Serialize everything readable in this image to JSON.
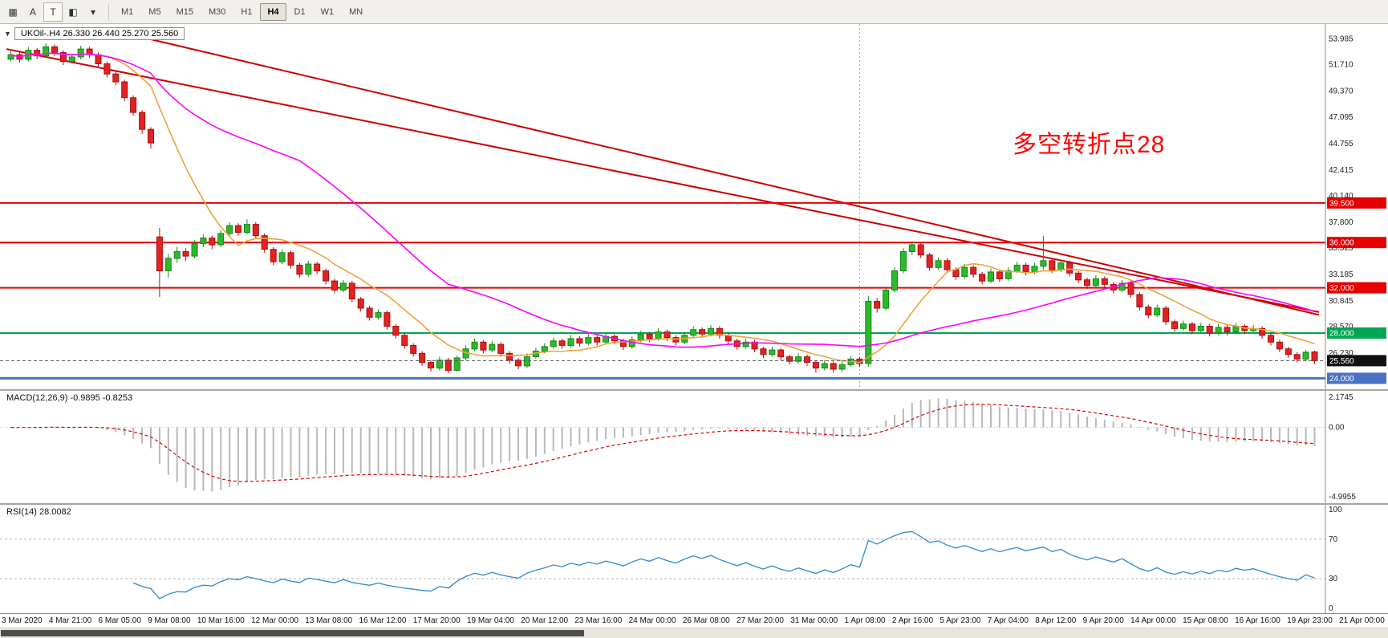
{
  "toolbar": {
    "tools": [
      {
        "name": "chart-grid-icon",
        "glyph": "▦",
        "boxed": false
      },
      {
        "name": "cursor-a-tool",
        "glyph": "A",
        "boxed": false
      },
      {
        "name": "text-tool",
        "glyph": "T",
        "boxed": true
      },
      {
        "name": "palette-icon",
        "glyph": "◧",
        "boxed": false
      },
      {
        "name": "palette-caret-icon",
        "glyph": "▾",
        "boxed": false
      }
    ],
    "timeframes": [
      "M1",
      "M5",
      "M15",
      "M30",
      "H1",
      "H4",
      "D1",
      "W1",
      "MN"
    ],
    "active_timeframe": "H4"
  },
  "main": {
    "symbol_info": "UKOil-.H4 26.330 26.440 25.270 25.560",
    "annotation": "多空转折点28"
  },
  "colors": {
    "up": "#2eb82e",
    "up_edge": "#128a12",
    "down": "#e32222",
    "down_edge": "#a80f0f",
    "trend": "#cc0000",
    "hist": "#b8b8b8",
    "macd_signal": "#e00000",
    "rsi_line": "#2f89cc",
    "ma_fast": "#eda33c",
    "ma_slow": "#ff00ff"
  },
  "chart_data": {
    "type": "candlestick",
    "symbol": "UKOil-",
    "timeframe": "H4",
    "ohlc_display": {
      "open": "26.330",
      "high": "26.440",
      "low": "25.270",
      "close": "25.560"
    },
    "price_range": {
      "min": 23.6,
      "max": 54.6
    },
    "price_ticks": [
      53.985,
      51.71,
      49.37,
      47.095,
      44.755,
      42.415,
      40.14,
      37.8,
      35.525,
      33.185,
      30.845,
      28.57,
      26.23
    ],
    "h_lines": [
      {
        "price": 39.5,
        "label": "39.500",
        "color": "#e60000",
        "width": 2
      },
      {
        "price": 36.0,
        "label": "36.000",
        "color": "#e60000",
        "width": 2
      },
      {
        "price": 32.0,
        "label": "32.000",
        "color": "#e60000",
        "width": 2
      },
      {
        "price": 28.0,
        "label": "28.000",
        "color": "#00a650",
        "width": 2
      },
      {
        "price": 24.0,
        "label": "24.000",
        "color": "#4a72c4",
        "width": 3
      }
    ],
    "current_price": {
      "value": 25.56,
      "label": "25.560"
    },
    "trend_lines": [
      {
        "i1": 13,
        "p1": 54.6,
        "i2": 150,
        "p2": 29.6
      },
      {
        "i1": 0,
        "p1": 53.1,
        "i2": 150,
        "p2": 29.85
      }
    ],
    "separator_index": 97,
    "moving_averages": [
      {
        "period": 10,
        "color": "#eda33c"
      },
      {
        "period": 34,
        "color": "#ff00ff"
      }
    ],
    "candles": [
      [
        52.2,
        52.9,
        52.0,
        52.6
      ],
      [
        52.6,
        52.9,
        51.9,
        52.2
      ],
      [
        52.2,
        53.3,
        52.0,
        53.0
      ],
      [
        53.0,
        53.2,
        52.2,
        52.5
      ],
      [
        52.5,
        53.6,
        52.3,
        53.3
      ],
      [
        53.3,
        53.5,
        52.5,
        52.8
      ],
      [
        52.8,
        53.0,
        51.7,
        52.0
      ],
      [
        52.0,
        52.7,
        51.8,
        52.4
      ],
      [
        52.4,
        53.4,
        52.2,
        53.1
      ],
      [
        53.1,
        53.3,
        52.3,
        52.6
      ],
      [
        52.6,
        52.8,
        51.5,
        51.8
      ],
      [
        51.8,
        52.0,
        50.6,
        50.9
      ],
      [
        50.9,
        51.2,
        49.9,
        50.2
      ],
      [
        50.2,
        50.4,
        48.5,
        48.8
      ],
      [
        48.8,
        49.0,
        47.2,
        47.5
      ],
      [
        47.5,
        47.7,
        45.6,
        46.0
      ],
      [
        46.0,
        46.2,
        44.3,
        44.8
      ],
      [
        36.5,
        37.3,
        31.2,
        33.5
      ],
      [
        33.5,
        35.0,
        32.9,
        34.6
      ],
      [
        34.6,
        35.6,
        34.2,
        35.2
      ],
      [
        35.2,
        35.5,
        34.4,
        34.8
      ],
      [
        34.8,
        36.2,
        34.6,
        35.9
      ],
      [
        35.9,
        36.7,
        35.6,
        36.4
      ],
      [
        36.4,
        36.6,
        35.4,
        35.8
      ],
      [
        35.8,
        37.1,
        35.6,
        36.8
      ],
      [
        36.8,
        37.8,
        36.5,
        37.5
      ],
      [
        37.5,
        37.7,
        36.6,
        36.9
      ],
      [
        36.9,
        38.05,
        36.7,
        37.6
      ],
      [
        37.6,
        37.8,
        36.3,
        36.6
      ],
      [
        36.6,
        36.8,
        35.1,
        35.4
      ],
      [
        35.4,
        35.6,
        34.0,
        34.3
      ],
      [
        34.3,
        35.4,
        34.1,
        35.1
      ],
      [
        35.1,
        35.3,
        33.7,
        34.0
      ],
      [
        34.0,
        34.2,
        32.9,
        33.2
      ],
      [
        33.2,
        34.4,
        33.0,
        34.1
      ],
      [
        34.1,
        34.3,
        33.2,
        33.5
      ],
      [
        33.5,
        33.7,
        32.3,
        32.6
      ],
      [
        32.6,
        32.8,
        31.5,
        31.8
      ],
      [
        31.8,
        32.7,
        31.6,
        32.4
      ],
      [
        32.4,
        32.6,
        30.7,
        31.0
      ],
      [
        31.0,
        31.2,
        29.9,
        30.2
      ],
      [
        30.2,
        30.4,
        29.1,
        29.4
      ],
      [
        29.4,
        30.1,
        29.2,
        29.8
      ],
      [
        29.8,
        30.0,
        28.3,
        28.6
      ],
      [
        28.6,
        28.8,
        27.5,
        27.8
      ],
      [
        27.8,
        28.0,
        26.6,
        26.9
      ],
      [
        26.9,
        27.1,
        25.9,
        26.2
      ],
      [
        26.2,
        26.4,
        25.1,
        25.4
      ],
      [
        25.4,
        25.6,
        24.6,
        24.9
      ],
      [
        24.9,
        25.9,
        24.7,
        25.6
      ],
      [
        25.6,
        25.8,
        24.45,
        24.7
      ],
      [
        24.7,
        26.0,
        24.6,
        25.8
      ],
      [
        25.8,
        26.9,
        25.6,
        26.6
      ],
      [
        26.6,
        27.5,
        26.4,
        27.2
      ],
      [
        27.2,
        27.4,
        26.2,
        26.5
      ],
      [
        26.5,
        27.3,
        26.3,
        27.0
      ],
      [
        27.0,
        27.2,
        25.9,
        26.2
      ],
      [
        26.2,
        26.4,
        25.3,
        25.6
      ],
      [
        25.6,
        25.8,
        24.8,
        25.1
      ],
      [
        25.1,
        26.2,
        24.9,
        25.9
      ],
      [
        25.9,
        26.7,
        25.7,
        26.4
      ],
      [
        26.4,
        27.1,
        26.2,
        26.8
      ],
      [
        26.8,
        27.6,
        26.6,
        27.3
      ],
      [
        27.3,
        27.5,
        26.6,
        26.9
      ],
      [
        26.9,
        27.8,
        26.7,
        27.5
      ],
      [
        27.5,
        27.7,
        26.8,
        27.1
      ],
      [
        27.1,
        27.9,
        26.9,
        27.6
      ],
      [
        27.6,
        27.8,
        26.9,
        27.2
      ],
      [
        27.2,
        28.0,
        27.0,
        27.7
      ],
      [
        27.7,
        27.9,
        27.0,
        27.3
      ],
      [
        27.3,
        27.5,
        26.5,
        26.8
      ],
      [
        26.8,
        27.7,
        26.6,
        27.4
      ],
      [
        27.4,
        28.2,
        27.2,
        27.9
      ],
      [
        27.9,
        28.1,
        27.2,
        27.5
      ],
      [
        27.5,
        28.4,
        27.3,
        28.1
      ],
      [
        28.1,
        28.3,
        27.3,
        27.6
      ],
      [
        27.6,
        27.8,
        26.9,
        27.2
      ],
      [
        27.2,
        28.1,
        27.0,
        27.8
      ],
      [
        27.8,
        28.6,
        27.6,
        28.3
      ],
      [
        28.3,
        28.5,
        27.6,
        27.9
      ],
      [
        27.9,
        28.7,
        27.7,
        28.4
      ],
      [
        28.4,
        28.6,
        27.5,
        27.8
      ],
      [
        27.8,
        28.0,
        27.0,
        27.3
      ],
      [
        27.3,
        27.5,
        26.5,
        26.8
      ],
      [
        26.8,
        27.5,
        26.6,
        27.2
      ],
      [
        27.2,
        27.4,
        26.3,
        26.6
      ],
      [
        26.6,
        26.8,
        25.8,
        26.1
      ],
      [
        26.1,
        26.8,
        25.9,
        26.5
      ],
      [
        26.5,
        26.7,
        25.6,
        25.9
      ],
      [
        25.9,
        26.1,
        25.2,
        25.5
      ],
      [
        25.5,
        26.2,
        25.3,
        25.9
      ],
      [
        25.9,
        26.1,
        25.1,
        25.4
      ],
      [
        25.4,
        25.6,
        24.5,
        24.9
      ],
      [
        24.9,
        25.6,
        24.7,
        25.3
      ],
      [
        25.3,
        25.5,
        24.5,
        24.8
      ],
      [
        24.8,
        25.5,
        24.6,
        25.2
      ],
      [
        25.2,
        26.0,
        25.0,
        25.7
      ],
      [
        25.7,
        25.9,
        25.0,
        25.3
      ],
      [
        25.3,
        31.3,
        25.0,
        30.8
      ],
      [
        30.8,
        31.1,
        29.8,
        30.2
      ],
      [
        30.2,
        32.1,
        30.0,
        31.8
      ],
      [
        31.8,
        33.8,
        31.6,
        33.5
      ],
      [
        33.5,
        35.5,
        33.3,
        35.2
      ],
      [
        35.2,
        36.1,
        34.9,
        35.8
      ],
      [
        35.8,
        36.0,
        34.6,
        34.9
      ],
      [
        34.9,
        35.1,
        33.5,
        33.8
      ],
      [
        33.8,
        34.7,
        33.6,
        34.4
      ],
      [
        34.4,
        34.6,
        33.3,
        33.6
      ],
      [
        33.6,
        33.8,
        32.7,
        33.0
      ],
      [
        33.0,
        34.1,
        32.8,
        33.8
      ],
      [
        33.8,
        34.0,
        32.9,
        33.2
      ],
      [
        33.2,
        33.4,
        32.3,
        32.6
      ],
      [
        32.6,
        33.7,
        32.4,
        33.4
      ],
      [
        33.4,
        33.6,
        32.5,
        32.8
      ],
      [
        32.8,
        33.8,
        32.6,
        33.5
      ],
      [
        33.5,
        34.3,
        33.3,
        34.0
      ],
      [
        34.0,
        34.2,
        33.1,
        33.4
      ],
      [
        33.4,
        34.2,
        33.2,
        33.9
      ],
      [
        33.9,
        36.6,
        33.6,
        34.4
      ],
      [
        34.4,
        34.6,
        33.3,
        33.6
      ],
      [
        33.6,
        34.5,
        33.4,
        34.2
      ],
      [
        34.2,
        34.4,
        33.0,
        33.3
      ],
      [
        33.3,
        33.5,
        32.4,
        32.7
      ],
      [
        32.7,
        32.9,
        31.9,
        32.2
      ],
      [
        32.2,
        33.1,
        32.0,
        32.8
      ],
      [
        32.8,
        33.0,
        32.0,
        32.3
      ],
      [
        32.3,
        32.5,
        31.5,
        31.8
      ],
      [
        31.8,
        32.7,
        31.6,
        32.4
      ],
      [
        32.4,
        32.6,
        31.1,
        31.4
      ],
      [
        31.4,
        31.6,
        30.0,
        30.3
      ],
      [
        30.3,
        30.5,
        29.3,
        29.6
      ],
      [
        29.6,
        30.5,
        29.4,
        30.2
      ],
      [
        30.2,
        30.4,
        28.7,
        29.0
      ],
      [
        29.0,
        29.2,
        28.1,
        28.4
      ],
      [
        28.4,
        29.1,
        28.2,
        28.8
      ],
      [
        28.8,
        29.0,
        27.9,
        28.2
      ],
      [
        28.2,
        28.9,
        28.0,
        28.6
      ],
      [
        28.6,
        28.8,
        27.7,
        28.0
      ],
      [
        28.0,
        28.8,
        27.8,
        28.5
      ],
      [
        28.5,
        28.7,
        27.8,
        28.1
      ],
      [
        28.1,
        28.9,
        27.9,
        28.6
      ],
      [
        28.6,
        28.8,
        27.9,
        28.2
      ],
      [
        28.2,
        28.7,
        28.0,
        28.4
      ],
      [
        28.4,
        28.6,
        27.5,
        27.8
      ],
      [
        27.8,
        28.0,
        26.9,
        27.2
      ],
      [
        27.2,
        27.4,
        26.3,
        26.6
      ],
      [
        26.6,
        26.8,
        25.8,
        26.1
      ],
      [
        26.1,
        26.3,
        25.4,
        25.7
      ],
      [
        25.7,
        26.5,
        25.5,
        26.3
      ],
      [
        26.33,
        26.44,
        25.27,
        25.56
      ]
    ],
    "macd": {
      "title": "MACD(12,26,9) -0.9895 -0.8253",
      "params": [
        12,
        26,
        9
      ],
      "max": 2.1745,
      "min": -4.9955,
      "scale": [
        {
          "v": 2.1745,
          "label": "2.1745"
        },
        {
          "v": 0,
          "label": "0.00"
        },
        {
          "v": -4.9955,
          "label": "-4.9955"
        }
      ]
    },
    "rsi": {
      "title": "RSI(14) 28.0082",
      "period": 14,
      "last_value": 28.0082,
      "levels": [
        70,
        30
      ],
      "scale": [
        {
          "v": 100,
          "label": "100"
        },
        {
          "v": 70,
          "label": "70"
        },
        {
          "v": 30,
          "label": "30"
        },
        {
          "v": 0,
          "label": "0"
        }
      ]
    },
    "time_labels": [
      "3 Mar 2020",
      "4 Mar 21:00",
      "6 Mar 05:00",
      "9 Mar 08:00",
      "10 Mar 16:00",
      "12 Mar 00:00",
      "13 Mar 08:00",
      "16 Mar 12:00",
      "17 Mar 20:00",
      "19 Mar 04:00",
      "20 Mar 12:00",
      "23 Mar 16:00",
      "24 Mar 00:00",
      "26 Mar 08:00",
      "27 Mar 20:00",
      "31 Mar 00:00",
      "1 Apr 08:00",
      "2 Apr 16:00",
      "5 Apr 23:00",
      "7 Apr 04:00",
      "8 Apr 12:00",
      "9 Apr 20:00",
      "14 Apr 00:00",
      "15 Apr 08:00",
      "16 Apr 16:00",
      "19 Apr 23:00",
      "21 Apr 00:00"
    ]
  }
}
